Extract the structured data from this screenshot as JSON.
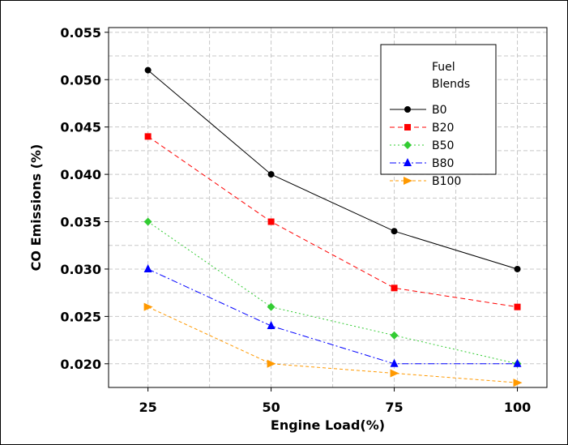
{
  "chart_data": {
    "type": "line",
    "xlabel": "Engine Load(%)",
    "ylabel": "CO Emissions (%)",
    "x": [
      25,
      50,
      75,
      100
    ],
    "xticks": [
      "25",
      "50",
      "75",
      "100"
    ],
    "yticks": [
      "0.020",
      "0.025",
      "0.030",
      "0.035",
      "0.040",
      "0.045",
      "0.050",
      "0.055"
    ],
    "ylim": [
      0.0175,
      0.0555
    ],
    "xlim": [
      17,
      106
    ],
    "grid": true,
    "legend_title": "Fuel\nBlends",
    "legend_position": "top-right",
    "series": [
      {
        "name": "B0",
        "values": [
          0.051,
          0.04,
          0.034,
          0.03
        ],
        "color": "#000000",
        "marker": "circle",
        "dash": "solid"
      },
      {
        "name": "B20",
        "values": [
          0.044,
          0.035,
          0.028,
          0.026
        ],
        "color": "#ff0000",
        "marker": "square",
        "dash": "dash"
      },
      {
        "name": "B50",
        "values": [
          0.035,
          0.026,
          0.023,
          0.02
        ],
        "color": "#33cc33",
        "marker": "diamond",
        "dash": "dot"
      },
      {
        "name": "B80",
        "values": [
          0.03,
          0.024,
          0.02,
          0.02
        ],
        "color": "#0000ff",
        "marker": "triangle",
        "dash": "dashdot"
      },
      {
        "name": "B100",
        "values": [
          0.026,
          0.02,
          0.019,
          0.018
        ],
        "color": "#ff9900",
        "marker": "triangle-right",
        "dash": "longdash"
      }
    ]
  }
}
